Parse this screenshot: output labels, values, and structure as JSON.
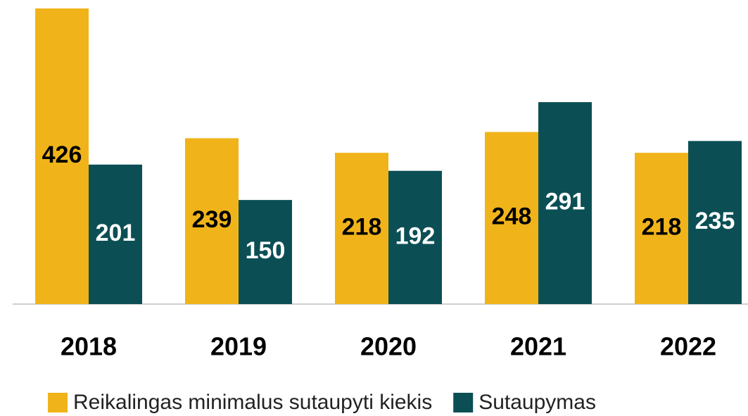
{
  "chart_data": {
    "type": "bar",
    "categories": [
      "2018",
      "2019",
      "2020",
      "2021",
      "2022"
    ],
    "series": [
      {
        "name": "Reikalingas minimalus sutaupyti kiekis",
        "color": "#f0b41a",
        "label_color": "#000000",
        "values": [
          426,
          239,
          218,
          248,
          218
        ]
      },
      {
        "name": "Sutaupymas",
        "color": "#0b4f55",
        "label_color": "#ffffff",
        "values": [
          201,
          150,
          192,
          291,
          235
        ]
      }
    ],
    "legend": "bottom"
  }
}
